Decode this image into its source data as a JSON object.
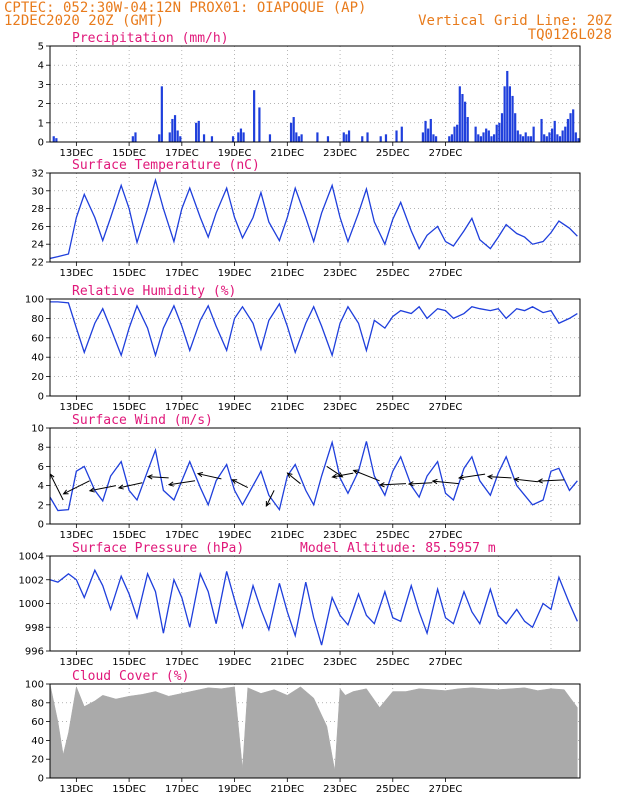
{
  "header": {
    "line1_left": "CPTEC:   052:30W-04:12N   PROX01: OIAPOQUE (AP)",
    "line2_left": "12DEC2020 20Z (GMT)",
    "line2_right": "Vertical Grid Line: 20Z",
    "line3_right": "TQ0126L028"
  },
  "colors": {
    "header": "#e87b1c",
    "title": "#e0187a",
    "series": "#1f3fdc",
    "cloud": "#aaaaaa",
    "grid": "#888888"
  },
  "chart_data": [
    {
      "type": "bar",
      "title": "Precipitation (mm/h)",
      "ylim": [
        0,
        5
      ],
      "yticks": [
        "0",
        "1",
        "2",
        "3",
        "4",
        "5"
      ],
      "xticks": [
        "13DEC",
        "15DEC",
        "17DEC",
        "19DEC",
        "21DEC",
        "23DEC",
        "25DEC",
        "27DEC"
      ],
      "x": [
        0.1,
        0.2,
        3.1,
        3.2,
        4.1,
        4.2,
        4.5,
        4.6,
        4.7,
        4.8,
        4.9,
        5.5,
        5.6,
        5.8,
        6.1,
        6.9,
        7.1,
        7.2,
        7.3,
        7.7,
        7.9,
        8.3,
        9.1,
        9.2,
        9.3,
        9.4,
        9.5,
        10.1,
        10.5,
        11.1,
        11.2,
        11.3,
        11.8,
        12.0,
        12.5,
        12.7,
        13.1,
        13.3,
        14.1,
        14.2,
        14.3,
        14.4,
        14.5,
        14.6,
        15.1,
        15.2,
        15.3,
        15.4,
        15.5,
        15.6,
        15.7,
        15.8,
        16.1,
        16.2,
        16.3,
        16.4,
        16.5,
        16.6,
        16.7,
        16.8,
        16.9,
        17.0,
        17.1,
        17.2,
        17.3,
        17.4,
        17.5,
        17.6,
        17.7,
        17.8,
        17.9,
        18.0,
        18.1,
        18.2,
        18.3,
        18.6,
        18.7,
        18.8,
        18.9,
        19.0,
        19.1,
        19.2,
        19.3,
        19.4,
        19.5,
        19.6,
        19.7,
        19.8,
        19.9,
        20.0
      ],
      "values": [
        0.3,
        0.2,
        0.3,
        0.5,
        0.4,
        2.9,
        0.5,
        1.2,
        1.4,
        0.6,
        0.3,
        1.0,
        1.1,
        0.4,
        0.3,
        0.3,
        0.5,
        0.7,
        0.5,
        2.7,
        1.8,
        0.4,
        1.0,
        1.3,
        0.5,
        0.3,
        0.4,
        0.5,
        0.3,
        0.5,
        0.4,
        0.6,
        0.3,
        0.5,
        0.3,
        0.4,
        0.6,
        0.8,
        0.5,
        1.1,
        0.7,
        1.2,
        0.4,
        0.3,
        0.3,
        0.4,
        0.8,
        0.9,
        2.9,
        2.5,
        2.1,
        1.3,
        0.8,
        0.4,
        0.3,
        0.5,
        0.7,
        0.6,
        0.3,
        0.4,
        0.9,
        1.0,
        1.5,
        2.9,
        3.7,
        2.9,
        2.4,
        1.5,
        0.6,
        0.4,
        0.3,
        0.5,
        0.3,
        0.3,
        0.8,
        1.2,
        0.4,
        0.3,
        0.5,
        0.7,
        1.1,
        0.4,
        0.3,
        0.6,
        0.8,
        1.2,
        1.5,
        1.7,
        0.5,
        0.2
      ]
    },
    {
      "type": "line",
      "title": "Surface Temperature (nC)",
      "ylim": [
        22,
        32
      ],
      "yticks": [
        "22",
        "24",
        "26",
        "28",
        "30",
        "32"
      ],
      "xticks": [
        "13DEC",
        "15DEC",
        "17DEC",
        "19DEC",
        "21DEC",
        "23DEC",
        "25DEC",
        "27DEC"
      ],
      "x": [
        0.0,
        0.3,
        0.7,
        1.0,
        1.3,
        1.7,
        2.0,
        2.3,
        2.7,
        3.0,
        3.3,
        3.7,
        4.0,
        4.3,
        4.7,
        5.0,
        5.3,
        5.7,
        6.0,
        6.3,
        6.7,
        7.0,
        7.3,
        7.7,
        8.0,
        8.3,
        8.7,
        9.0,
        9.3,
        9.7,
        10.0,
        10.3,
        10.7,
        11.0,
        11.3,
        11.7,
        12.0,
        12.3,
        12.7,
        13.0,
        13.3,
        13.7,
        14.0,
        14.3,
        14.7,
        15.0,
        15.3,
        15.7,
        16.0,
        16.3,
        16.7,
        17.0,
        17.3,
        17.7,
        18.0,
        18.3,
        18.7,
        19.0,
        19.3,
        19.7,
        20.0
      ],
      "values": [
        22.4,
        22.6,
        22.9,
        27.0,
        29.6,
        27.0,
        24.4,
        27.0,
        30.6,
        28.0,
        24.2,
        28.0,
        31.2,
        28.0,
        24.3,
        28.0,
        30.3,
        27.0,
        24.8,
        27.5,
        30.3,
        27.0,
        24.7,
        27.0,
        29.8,
        26.5,
        24.4,
        27.0,
        30.3,
        27.0,
        24.3,
        27.5,
        30.6,
        27.0,
        24.3,
        27.5,
        30.2,
        26.5,
        24.0,
        26.8,
        28.7,
        25.5,
        23.5,
        25.0,
        26.0,
        24.3,
        23.8,
        25.5,
        26.9,
        24.5,
        23.5,
        24.8,
        26.2,
        25.2,
        24.8,
        24.0,
        24.3,
        25.3,
        26.6,
        25.8,
        24.9
      ]
    },
    {
      "type": "line",
      "title": "Relative Humidity (%)",
      "ylim": [
        0,
        100
      ],
      "yticks": [
        "0",
        "20",
        "40",
        "60",
        "80",
        "100"
      ],
      "xticks": [
        "13DEC",
        "15DEC",
        "17DEC",
        "19DEC",
        "21DEC",
        "23DEC",
        "25DEC",
        "27DEC"
      ],
      "x": [
        0.0,
        0.3,
        0.7,
        1.0,
        1.3,
        1.7,
        2.0,
        2.3,
        2.7,
        3.0,
        3.3,
        3.7,
        4.0,
        4.3,
        4.7,
        5.0,
        5.3,
        5.7,
        6.0,
        6.3,
        6.7,
        7.0,
        7.3,
        7.7,
        8.0,
        8.3,
        8.7,
        9.0,
        9.3,
        9.7,
        10.0,
        10.3,
        10.7,
        11.0,
        11.3,
        11.7,
        12.0,
        12.3,
        12.7,
        13.0,
        13.3,
        13.7,
        14.0,
        14.3,
        14.7,
        15.0,
        15.3,
        15.7,
        16.0,
        16.3,
        16.7,
        17.0,
        17.3,
        17.7,
        18.0,
        18.3,
        18.7,
        19.0,
        19.3,
        19.7,
        20.0
      ],
      "values": [
        97,
        97,
        96,
        70,
        45,
        75,
        90,
        70,
        42,
        70,
        93,
        70,
        42,
        70,
        93,
        72,
        47,
        78,
        93,
        72,
        47,
        80,
        92,
        75,
        48,
        78,
        95,
        72,
        45,
        75,
        92,
        72,
        42,
        75,
        92,
        75,
        47,
        78,
        70,
        82,
        88,
        85,
        92,
        80,
        90,
        88,
        80,
        85,
        92,
        90,
        88,
        90,
        80,
        90,
        88,
        92,
        86,
        88,
        75,
        80,
        85
      ]
    },
    {
      "type": "line",
      "title": "Surface Wind (m/s)",
      "ylim": [
        0,
        10
      ],
      "yticks": [
        "0",
        "2",
        "4",
        "6",
        "8",
        "10"
      ],
      "xticks": [
        "13DEC",
        "15DEC",
        "17DEC",
        "19DEC",
        "21DEC",
        "23DEC",
        "25DEC",
        "27DEC"
      ],
      "x": [
        0.0,
        0.3,
        0.7,
        1.0,
        1.3,
        1.7,
        2.0,
        2.3,
        2.7,
        3.0,
        3.3,
        3.7,
        4.0,
        4.3,
        4.7,
        5.0,
        5.3,
        5.7,
        6.0,
        6.3,
        6.7,
        7.0,
        7.3,
        7.7,
        8.0,
        8.3,
        8.7,
        9.0,
        9.3,
        9.7,
        10.0,
        10.3,
        10.7,
        11.0,
        11.3,
        11.7,
        12.0,
        12.3,
        12.7,
        13.0,
        13.3,
        13.7,
        14.0,
        14.3,
        14.7,
        15.0,
        15.3,
        15.7,
        16.0,
        16.3,
        16.7,
        17.0,
        17.3,
        17.7,
        18.0,
        18.3,
        18.7,
        19.0,
        19.3,
        19.7,
        20.0
      ],
      "values": [
        2.8,
        1.4,
        1.5,
        5.5,
        6.0,
        3.5,
        2.4,
        5.0,
        6.5,
        3.5,
        2.5,
        5.5,
        7.7,
        3.5,
        2.5,
        4.5,
        6.5,
        3.8,
        2.0,
        4.5,
        6.2,
        3.5,
        2.0,
        4.0,
        5.5,
        3.0,
        1.5,
        5.0,
        6.2,
        3.5,
        2.0,
        5.0,
        8.5,
        4.8,
        3.2,
        5.5,
        8.6,
        5.0,
        3.0,
        5.5,
        7.0,
        4.0,
        2.8,
        5.0,
        6.5,
        3.2,
        2.5,
        5.8,
        7.0,
        4.5,
        3.0,
        5.3,
        7.0,
        4.0,
        3.0,
        2.0,
        2.5,
        5.5,
        5.8,
        3.5,
        4.5
      ],
      "arrows": {
        "x": [
          0.5,
          1.5,
          2.5,
          3.5,
          4.5,
          5.5,
          6.5,
          7.5,
          8.5,
          9.5,
          10.5,
          11.5,
          12.5,
          13.5,
          14.5,
          15.5,
          16.5,
          17.5,
          18.5,
          19.5
        ],
        "y": [
          2.5,
          4.5,
          4.0,
          4.3,
          4.8,
          4.5,
          4.7,
          3.8,
          3.5,
          4.2,
          6.0,
          5.3,
          4.5,
          4.2,
          4.3,
          4.2,
          5.2,
          4.8,
          4.4,
          4.6
        ],
        "u": [
          -0.5,
          -1.0,
          -1.0,
          -0.9,
          -0.8,
          -1.0,
          -0.9,
          -0.6,
          -0.3,
          -0.5,
          0.6,
          -0.8,
          -1.0,
          -1.0,
          -0.9,
          -1.0,
          -1.0,
          -0.9,
          -0.9,
          -1.0
        ],
        "v": [
          2.0,
          -1.0,
          -0.4,
          -0.4,
          0.1,
          -0.3,
          0.4,
          0.6,
          -1.2,
          0.8,
          -0.8,
          -0.3,
          0.8,
          -0.1,
          -0.1,
          0.2,
          -0.3,
          0.1,
          0.2,
          -0.1
        ]
      }
    },
    {
      "type": "line",
      "title": "Surface Pressure (hPa)",
      "annotation": "Model Altitude: 85.5957 m",
      "ylim": [
        996,
        1004
      ],
      "yticks": [
        "996",
        "998",
        "1000",
        "1002",
        "1004"
      ],
      "xticks": [
        "13DEC",
        "15DEC",
        "17DEC",
        "19DEC",
        "21DEC",
        "23DEC",
        "25DEC",
        "27DEC"
      ],
      "x": [
        0.0,
        0.3,
        0.7,
        1.0,
        1.3,
        1.7,
        2.0,
        2.3,
        2.7,
        3.0,
        3.3,
        3.7,
        4.0,
        4.3,
        4.7,
        5.0,
        5.3,
        5.7,
        6.0,
        6.3,
        6.7,
        7.0,
        7.3,
        7.7,
        8.0,
        8.3,
        8.7,
        9.0,
        9.3,
        9.7,
        10.0,
        10.3,
        10.7,
        11.0,
        11.3,
        11.7,
        12.0,
        12.3,
        12.7,
        13.0,
        13.3,
        13.7,
        14.0,
        14.3,
        14.7,
        15.0,
        15.3,
        15.7,
        16.0,
        16.3,
        16.7,
        17.0,
        17.3,
        17.7,
        18.0,
        18.3,
        18.7,
        19.0,
        19.3,
        19.7,
        20.0
      ],
      "values": [
        1002.0,
        1001.8,
        1002.5,
        1002.0,
        1000.5,
        1002.8,
        1001.5,
        999.5,
        1002.3,
        1000.8,
        998.8,
        1002.5,
        1001.0,
        997.5,
        1002.0,
        1000.5,
        998.0,
        1002.5,
        1001.0,
        998.3,
        1002.7,
        1000.3,
        998.0,
        1001.5,
        999.5,
        997.8,
        1001.7,
        999.3,
        997.3,
        1001.8,
        998.8,
        996.5,
        1000.5,
        999.0,
        998.2,
        1000.8,
        999.0,
        998.3,
        1001.0,
        998.8,
        998.5,
        1001.5,
        999.3,
        997.5,
        1001.2,
        998.8,
        998.3,
        1001.0,
        999.3,
        998.3,
        1001.2,
        999.0,
        998.3,
        999.5,
        998.5,
        998.0,
        1000.0,
        999.5,
        1002.2,
        1000.0,
        998.5
      ]
    },
    {
      "type": "area",
      "title": "Cloud Cover (%)",
      "ylim": [
        0,
        100
      ],
      "yticks": [
        "0",
        "20",
        "40",
        "60",
        "80",
        "100"
      ],
      "xticks": [
        "13DEC",
        "15DEC",
        "17DEC",
        "19DEC",
        "21DEC",
        "23DEC",
        "25DEC",
        "27DEC"
      ],
      "x": [
        0.0,
        0.3,
        0.5,
        0.7,
        1.0,
        1.3,
        1.7,
        2.0,
        2.5,
        3.0,
        3.5,
        4.0,
        4.5,
        5.0,
        5.5,
        6.0,
        6.5,
        7.0,
        7.3,
        7.5,
        8.0,
        8.5,
        9.0,
        9.5,
        10.0,
        10.5,
        10.8,
        11.0,
        11.2,
        11.5,
        12.0,
        12.5,
        13.0,
        13.5,
        14.0,
        14.5,
        15.0,
        15.5,
        16.0,
        16.5,
        17.0,
        17.5,
        18.0,
        18.5,
        19.0,
        19.5,
        20.0
      ],
      "values": [
        100,
        60,
        25,
        48,
        97,
        76,
        82,
        88,
        84,
        87,
        89,
        92,
        87,
        90,
        93,
        96,
        95,
        97,
        10,
        96,
        90,
        94,
        88,
        97,
        85,
        55,
        8,
        95,
        88,
        92,
        95,
        75,
        92,
        92,
        95,
        94,
        93,
        95,
        96,
        95,
        94,
        95,
        96,
        93,
        95,
        94,
        75
      ]
    }
  ]
}
